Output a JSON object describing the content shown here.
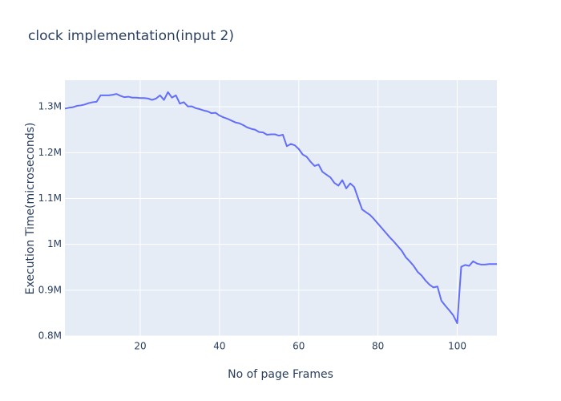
{
  "chart_data": {
    "type": "line",
    "title": "clock implementation(input 2)",
    "x_label": "No of page Frames",
    "y_label": "Execution Time(microseconds)",
    "x": [
      1,
      2,
      3,
      4,
      5,
      6,
      7,
      8,
      9,
      10,
      11,
      12,
      13,
      14,
      15,
      16,
      17,
      18,
      19,
      20,
      21,
      22,
      23,
      24,
      25,
      26,
      27,
      28,
      29,
      30,
      31,
      32,
      33,
      34,
      35,
      36,
      37,
      38,
      39,
      40,
      41,
      42,
      43,
      44,
      45,
      46,
      47,
      48,
      49,
      50,
      51,
      52,
      53,
      54,
      55,
      56,
      57,
      58,
      59,
      60,
      61,
      62,
      63,
      64,
      65,
      66,
      67,
      68,
      69,
      70,
      71,
      72,
      73,
      74,
      75,
      76,
      77,
      78,
      79,
      80,
      81,
      82,
      83,
      84,
      85,
      86,
      87,
      88,
      89,
      90,
      91,
      92,
      93,
      94,
      95,
      96,
      97,
      98,
      99,
      100,
      101,
      102,
      103,
      104,
      105,
      106,
      107,
      108,
      109,
      110
    ],
    "series": [
      {
        "name": "clock",
        "color": "#636efa",
        "values": [
          1296000,
          1298000,
          1299000,
          1302000,
          1303000,
          1305000,
          1308000,
          1310000,
          1311000,
          1325000,
          1325000,
          1325000,
          1326000,
          1328000,
          1324000,
          1321000,
          1322000,
          1320000,
          1320000,
          1319000,
          1319000,
          1318000,
          1315000,
          1318000,
          1325000,
          1315000,
          1332000,
          1320000,
          1325000,
          1307000,
          1310000,
          1301000,
          1301000,
          1297000,
          1295000,
          1292000,
          1290000,
          1286000,
          1287000,
          1281000,
          1277000,
          1274000,
          1270000,
          1266000,
          1264000,
          1260000,
          1255000,
          1252000,
          1250000,
          1245000,
          1244000,
          1239000,
          1240000,
          1240000,
          1237000,
          1239000,
          1214000,
          1219000,
          1216000,
          1208000,
          1196000,
          1191000,
          1180000,
          1171000,
          1174000,
          1158000,
          1152000,
          1146000,
          1134000,
          1128000,
          1140000,
          1122000,
          1133000,
          1125000,
          1100000,
          1076000,
          1070000,
          1064000,
          1055000,
          1045000,
          1035000,
          1025000,
          1015000,
          1006000,
          996000,
          986000,
          972000,
          963000,
          953000,
          940000,
          932000,
          921000,
          912000,
          906000,
          908000,
          877000,
          866000,
          856000,
          845000,
          828000,
          951000,
          955000,
          953000,
          963000,
          958000,
          956000,
          956000,
          957000,
          957000,
          957000
        ]
      }
    ],
    "xlim": [
      1,
      110
    ],
    "xticks": [
      20,
      40,
      60,
      80,
      100
    ],
    "ylim": [
      800000,
      1358000
    ],
    "yticks": [
      {
        "value": 800000,
        "label": "0.8M"
      },
      {
        "value": 900000,
        "label": "0.9M"
      },
      {
        "value": 1000000,
        "label": "1M"
      },
      {
        "value": 1100000,
        "label": "1.1M"
      },
      {
        "value": 1200000,
        "label": "1.2M"
      },
      {
        "value": 1300000,
        "label": "1.3M"
      }
    ],
    "grid": true
  }
}
